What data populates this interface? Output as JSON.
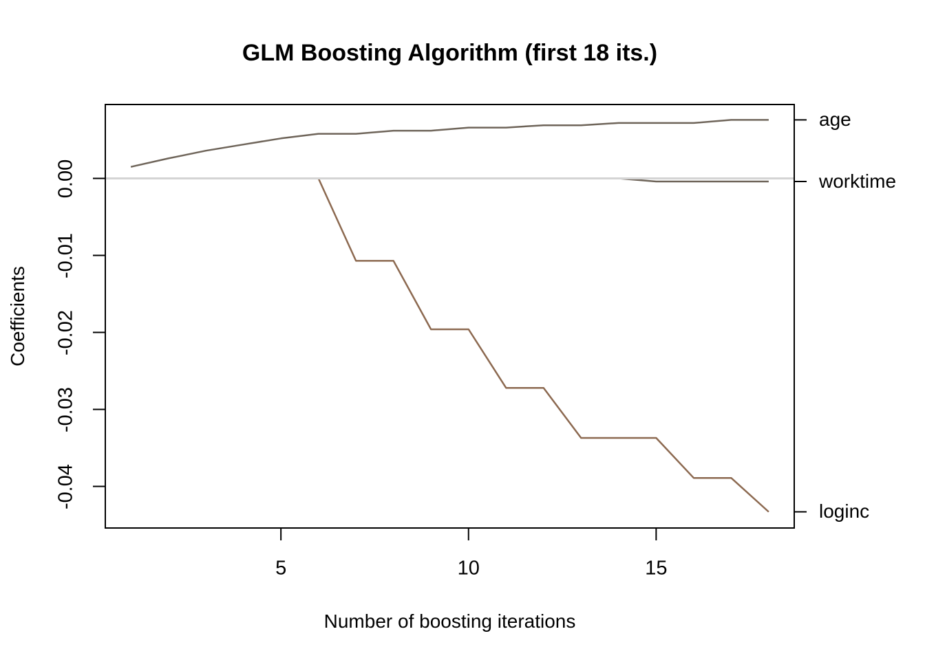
{
  "chart_data": {
    "type": "line",
    "title": "GLM Boosting Algorithm (first 18 its.)",
    "xlabel": "Number of boosting iterations",
    "ylabel": "Coefficients",
    "x": [
      1,
      2,
      3,
      4,
      5,
      6,
      7,
      8,
      9,
      10,
      11,
      12,
      13,
      14,
      15,
      16,
      17,
      18
    ],
    "xlim": [
      0.32,
      18.68
    ],
    "ylim": [
      -0.0454,
      0.0096
    ],
    "xticks": [
      {
        "value": 5,
        "label": "5"
      },
      {
        "value": 10,
        "label": "10"
      },
      {
        "value": 15,
        "label": "15"
      }
    ],
    "yticks": [
      {
        "value": 0,
        "label": "0.00"
      },
      {
        "value": -0.01,
        "label": "-0.01"
      },
      {
        "value": -0.02,
        "label": "-0.02"
      },
      {
        "value": -0.03,
        "label": "-0.03"
      },
      {
        "value": -0.04,
        "label": "-0.04"
      }
    ],
    "zero_line": {
      "value": 0,
      "color": "#d4d4d4"
    },
    "legend_position": "right-margin",
    "grid": false,
    "series": [
      {
        "name": "age",
        "color": "#6e6459",
        "values": [
          0.0015,
          0.0026,
          0.0036,
          0.0044,
          0.0052,
          0.0058,
          0.0058,
          0.0062,
          0.0062,
          0.0066,
          0.0066,
          0.0069,
          0.0069,
          0.0072,
          0.0072,
          0.0072,
          0.0076,
          0.0076
        ]
      },
      {
        "name": "worktime",
        "color": "#6e6459",
        "values": [
          0,
          0,
          0,
          0,
          0,
          0,
          0,
          0,
          0,
          0,
          0,
          0,
          0,
          0,
          -0.0004,
          -0.0004,
          -0.0004,
          -0.0004
        ]
      },
      {
        "name": "loginc",
        "color": "#8c6950",
        "values": [
          0,
          0,
          0,
          0,
          0,
          0,
          -0.0107,
          -0.0107,
          -0.0196,
          -0.0196,
          -0.0272,
          -0.0272,
          -0.0337,
          -0.0337,
          -0.0337,
          -0.0389,
          -0.0389,
          -0.0433
        ]
      }
    ],
    "axis_color": "#000000",
    "background_color": "#ffffff"
  }
}
